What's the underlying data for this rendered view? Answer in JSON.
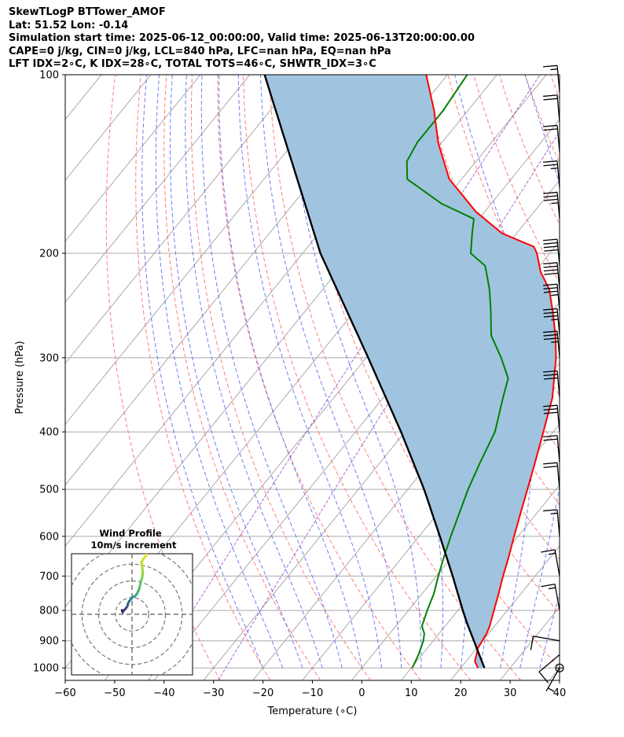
{
  "header": {
    "line1": "SkewTLogP BTTower_AMOF",
    "line2": "Lat: 51.52   Lon: -0.14",
    "line3": "Simulation start time: 2025-06-12_00:00:00, Valid time: 2025-06-13T20:00:00.00",
    "line4": "CAPE=0 j/kg, CIN=0 j/kg, LCL=840 hPa, LFC=nan hPa, EQ=nan hPa",
    "line5": "LFT IDX=2∘C, K IDX=28∘C, TOTAL TOTS=46∘C, SHWTR_IDX=3∘C"
  },
  "axes": {
    "xlabel": "Temperature (∘C)",
    "ylabel": "Pressure (hPa)"
  },
  "inset": {
    "title_line1": "Wind Profile",
    "title_line2": "10m/s increment"
  },
  "colors": {
    "temperature": "#ff0000",
    "dewpoint": "#008000",
    "parcel": "#000000",
    "shading": "#a0c4df",
    "dry_adiabat": "#ff6666",
    "moist_adiabat": "#4a5cf0",
    "mixing_ratio": "#9b3fc4",
    "isotherm": "#aaaaaa"
  },
  "chart_data": {
    "type": "line",
    "subtype": "skew-T log-P diagram",
    "xlim": [
      -60,
      40
    ],
    "ylim": [
      1050,
      100
    ],
    "y_scale": "log",
    "x_ticks": [
      -60,
      -50,
      -40,
      -30,
      -20,
      -10,
      0,
      10,
      20,
      30,
      40
    ],
    "y_ticks": [
      1000,
      900,
      800,
      700,
      600,
      500,
      400,
      300,
      200,
      100
    ],
    "grid": true,
    "series": [
      {
        "key": "temperature",
        "points": [
          [
            1000,
            23.5
          ],
          [
            975,
            21.8
          ],
          [
            925,
            20.2
          ],
          [
            875,
            19.6
          ],
          [
            850,
            19.0
          ],
          [
            800,
            17.3
          ],
          [
            750,
            15.5
          ],
          [
            700,
            13.5
          ],
          [
            650,
            11.5
          ],
          [
            600,
            9.2
          ],
          [
            550,
            6.8
          ],
          [
            500,
            4.2
          ],
          [
            450,
            1.3
          ],
          [
            400,
            -2.0
          ],
          [
            350,
            -5.8
          ],
          [
            325,
            -8.6
          ],
          [
            300,
            -11.6
          ],
          [
            275,
            -15.4
          ],
          [
            250,
            -20.0
          ],
          [
            230,
            -24.2
          ],
          [
            215,
            -28.8
          ],
          [
            200,
            -32.6
          ],
          [
            195,
            -34.3
          ],
          [
            190,
            -38.6
          ],
          [
            185,
            -43.0
          ],
          [
            170,
            -51.9
          ],
          [
            160,
            -57.0
          ],
          [
            150,
            -62.5
          ],
          [
            140,
            -66.5
          ],
          [
            130,
            -70.8
          ],
          [
            115,
            -76.8
          ],
          [
            100,
            -84.3
          ]
        ]
      },
      {
        "key": "dewpoint",
        "points": [
          [
            1000,
            10.2
          ],
          [
            950,
            9.3
          ],
          [
            900,
            8.0
          ],
          [
            875,
            7.0
          ],
          [
            850,
            5.3
          ],
          [
            800,
            3.8
          ],
          [
            750,
            2.4
          ],
          [
            700,
            0.4
          ],
          [
            650,
            -1.6
          ],
          [
            600,
            -3.6
          ],
          [
            550,
            -5.6
          ],
          [
            500,
            -7.8
          ],
          [
            450,
            -9.8
          ],
          [
            400,
            -11.8
          ],
          [
            350,
            -15.8
          ],
          [
            325,
            -17.9
          ],
          [
            300,
            -22.7
          ],
          [
            275,
            -28.4
          ],
          [
            250,
            -32.5
          ],
          [
            230,
            -36.3
          ],
          [
            210,
            -41.0
          ],
          [
            200,
            -46.0
          ],
          [
            185,
            -49.0
          ],
          [
            175,
            -51.0
          ],
          [
            165,
            -60.0
          ],
          [
            150,
            -71.0
          ],
          [
            140,
            -74.0
          ],
          [
            130,
            -75.0
          ],
          [
            115,
            -75.0
          ],
          [
            100,
            -76.0
          ]
        ]
      },
      {
        "key": "parcel",
        "points": [
          [
            1000,
            24.8
          ],
          [
            840,
            13.9
          ],
          [
            800,
            11.0
          ],
          [
            700,
            3.3
          ],
          [
            600,
            -5.8
          ],
          [
            500,
            -16.7
          ],
          [
            400,
            -30.8
          ],
          [
            300,
            -49.6
          ],
          [
            200,
            -76.4
          ],
          [
            100,
            -117.0
          ]
        ]
      }
    ],
    "wind_barbs": [
      {
        "p": 1000,
        "speed_kt": 5,
        "dir_deg": 210
      },
      {
        "p": 950,
        "speed_kt": 10,
        "dir_deg": 230
      },
      {
        "p": 900,
        "speed_kt": 10,
        "dir_deg": 280
      },
      {
        "p": 800,
        "speed_kt": 15,
        "dir_deg": 350
      },
      {
        "p": 700,
        "speed_kt": 15,
        "dir_deg": 350
      },
      {
        "p": 600,
        "speed_kt": 15,
        "dir_deg": 355
      },
      {
        "p": 500,
        "speed_kt": 20,
        "dir_deg": 355
      },
      {
        "p": 450,
        "speed_kt": 20,
        "dir_deg": 355
      },
      {
        "p": 400,
        "speed_kt": 30,
        "dir_deg": 355
      },
      {
        "p": 350,
        "speed_kt": 30,
        "dir_deg": 355
      },
      {
        "p": 300,
        "speed_kt": 35,
        "dir_deg": 355
      },
      {
        "p": 275,
        "speed_kt": 35,
        "dir_deg": 355
      },
      {
        "p": 250,
        "speed_kt": 35,
        "dir_deg": 355
      },
      {
        "p": 230,
        "speed_kt": 40,
        "dir_deg": 355
      },
      {
        "p": 210,
        "speed_kt": 40,
        "dir_deg": 355
      },
      {
        "p": 175,
        "speed_kt": 35,
        "dir_deg": 355
      },
      {
        "p": 155,
        "speed_kt": 25,
        "dir_deg": 355
      },
      {
        "p": 135,
        "speed_kt": 20,
        "dir_deg": 355
      },
      {
        "p": 120,
        "speed_kt": 20,
        "dir_deg": 355
      },
      {
        "p": 107,
        "speed_kt": 15,
        "dir_deg": 355
      }
    ],
    "hodograph": {
      "title": "Wind Profile 10m/s increment",
      "ring_step_ms": 10,
      "points": [
        [
          -1.4,
          0.3
        ],
        [
          -1.5,
          0.6
        ],
        [
          -1.4,
          0.4
        ],
        [
          -1.2,
          0.6
        ],
        [
          -0.9,
          0.9
        ],
        [
          -0.7,
          1.2
        ],
        [
          -0.6,
          1.6
        ],
        [
          -0.4,
          2.0
        ],
        [
          -0.2,
          2.2
        ],
        [
          0.0,
          2.5
        ],
        [
          0.4,
          2.7
        ],
        [
          0.7,
          3.0
        ],
        [
          1.0,
          3.6
        ],
        [
          1.2,
          4.3
        ],
        [
          1.3,
          4.9
        ],
        [
          1.5,
          5.4
        ],
        [
          1.6,
          6.0
        ],
        [
          1.6,
          6.5
        ],
        [
          1.5,
          7.2
        ],
        [
          1.4,
          7.8
        ],
        [
          1.7,
          8.3
        ],
        [
          2.2,
          8.9
        ],
        [
          2.0,
          9.5
        ],
        [
          1.4,
          9.8
        ]
      ]
    }
  }
}
